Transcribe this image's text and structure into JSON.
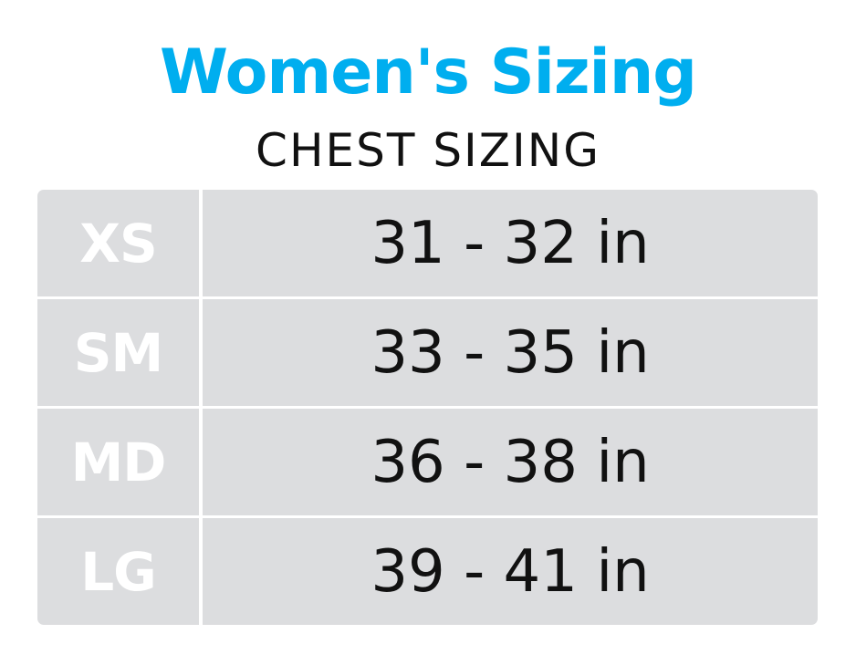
{
  "title": "Women's Sizing",
  "subtitle": "CHEST SIZING",
  "colors": {
    "title": "#00aeef",
    "cell_background": "#dcdddf",
    "size_text": "#ffffff",
    "range_text": "#111111"
  },
  "rows": [
    {
      "size": "XS",
      "range": "31 - 32 in"
    },
    {
      "size": "SM",
      "range": "33 - 35 in"
    },
    {
      "size": "MD",
      "range": "36 - 38 in"
    },
    {
      "size": "LG",
      "range": "39 - 41 in"
    }
  ]
}
